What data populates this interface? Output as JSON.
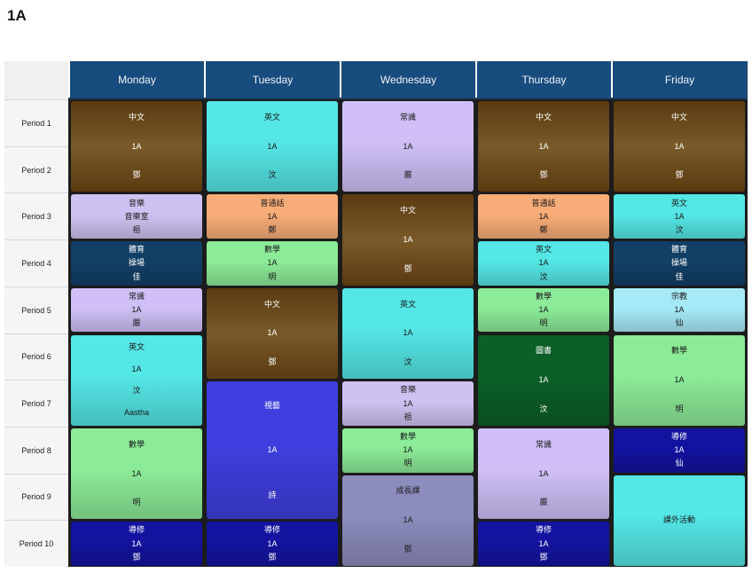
{
  "title": "1A",
  "days": [
    "Monday",
    "Tuesday",
    "Wednesday",
    "Thursday",
    "Friday"
  ],
  "periods": [
    "Period 1",
    "Period 2",
    "Period 3",
    "Period 4",
    "Period 5",
    "Period 6",
    "Period 7",
    "Period 8",
    "Period 9",
    "Period 10"
  ],
  "colors": {
    "chinese": "#6b4a1c",
    "english": "#55e6e6",
    "gs": "#d0c0f7",
    "music": "#cfc2f2",
    "putonghua": "#f8ad78",
    "pe": "#123f66",
    "math": "#8ceb98",
    "library": "#0b5f27",
    "art": "#3f3fe0",
    "religion": "#a6eaf7",
    "life": "#8c8cbd",
    "tutor": "#13139f"
  },
  "lessons": [
    {
      "day": 0,
      "start": 0,
      "span": 2,
      "c": "chinese",
      "lines": [
        "中文",
        "1A",
        "鄧"
      ]
    },
    {
      "day": 0,
      "start": 2,
      "span": 1,
      "c": "music",
      "lines": [
        "音樂",
        "音樂室",
        "祖"
      ]
    },
    {
      "day": 0,
      "start": 3,
      "span": 1,
      "c": "pe",
      "lines": [
        "體育",
        "操場",
        "佳"
      ]
    },
    {
      "day": 0,
      "start": 4,
      "span": 1,
      "c": "gs",
      "lines": [
        "常識",
        "1A",
        "嚴"
      ]
    },
    {
      "day": 0,
      "start": 5,
      "span": 2,
      "c": "english",
      "lines": [
        "英文",
        "1A",
        "汶",
        "Aastha"
      ]
    },
    {
      "day": 0,
      "start": 7,
      "span": 2,
      "c": "math",
      "lines": [
        "數學",
        "1A",
        "明"
      ]
    },
    {
      "day": 0,
      "start": 9,
      "span": 1,
      "c": "tutor",
      "lines": [
        "導修",
        "1A",
        "鄧"
      ]
    },
    {
      "day": 1,
      "start": 0,
      "span": 2,
      "c": "english",
      "lines": [
        "英文",
        "1A",
        "汶"
      ]
    },
    {
      "day": 1,
      "start": 2,
      "span": 1,
      "c": "putonghua",
      "lines": [
        "普通話",
        "1A",
        "鄭"
      ]
    },
    {
      "day": 1,
      "start": 3,
      "span": 1,
      "c": "math",
      "lines": [
        "數學",
        "1A",
        "明"
      ]
    },
    {
      "day": 1,
      "start": 4,
      "span": 2,
      "c": "chinese",
      "lines": [
        "中文",
        "1A",
        "鄧"
      ]
    },
    {
      "day": 1,
      "start": 6,
      "span": 3,
      "c": "art",
      "lines": [
        "視藝",
        "1A",
        "詩"
      ]
    },
    {
      "day": 1,
      "start": 9,
      "span": 1,
      "c": "tutor",
      "lines": [
        "導修",
        "1A",
        "鄧"
      ]
    },
    {
      "day": 2,
      "start": 0,
      "span": 2,
      "c": "gs",
      "lines": [
        "常識",
        "1A",
        "嚴"
      ]
    },
    {
      "day": 2,
      "start": 2,
      "span": 2,
      "c": "chinese",
      "lines": [
        "中文",
        "1A",
        "鄧"
      ]
    },
    {
      "day": 2,
      "start": 4,
      "span": 2,
      "c": "english",
      "lines": [
        "英文",
        "1A",
        "汶"
      ]
    },
    {
      "day": 2,
      "start": 6,
      "span": 1,
      "c": "music",
      "lines": [
        "音樂",
        "1A",
        "祖"
      ]
    },
    {
      "day": 2,
      "start": 7,
      "span": 1,
      "c": "math",
      "lines": [
        "數學",
        "1A",
        "明"
      ]
    },
    {
      "day": 2,
      "start": 8,
      "span": 2,
      "c": "life",
      "lines": [
        "成長課",
        "1A",
        "鄧"
      ]
    },
    {
      "day": 3,
      "start": 0,
      "span": 2,
      "c": "chinese",
      "lines": [
        "中文",
        "1A",
        "鄧"
      ]
    },
    {
      "day": 3,
      "start": 2,
      "span": 1,
      "c": "putonghua",
      "lines": [
        "普通話",
        "1A",
        "鄭"
      ]
    },
    {
      "day": 3,
      "start": 3,
      "span": 1,
      "c": "english",
      "lines": [
        "英文",
        "1A",
        "汶"
      ]
    },
    {
      "day": 3,
      "start": 4,
      "span": 1,
      "c": "math",
      "lines": [
        "數學",
        "1A",
        "明"
      ]
    },
    {
      "day": 3,
      "start": 5,
      "span": 2,
      "c": "library",
      "lines": [
        "圖書",
        "1A",
        "汶"
      ]
    },
    {
      "day": 3,
      "start": 7,
      "span": 2,
      "c": "gs",
      "lines": [
        "常識",
        "1A",
        "嚴"
      ]
    },
    {
      "day": 3,
      "start": 9,
      "span": 1,
      "c": "tutor",
      "lines": [
        "導修",
        "1A",
        "鄧"
      ]
    },
    {
      "day": 4,
      "start": 0,
      "span": 2,
      "c": "chinese",
      "lines": [
        "中文",
        "1A",
        "鄧"
      ]
    },
    {
      "day": 4,
      "start": 2,
      "span": 1,
      "c": "english",
      "lines": [
        "英文",
        "1A",
        "汶"
      ]
    },
    {
      "day": 4,
      "start": 3,
      "span": 1,
      "c": "pe",
      "lines": [
        "體育",
        "操場",
        "佳"
      ]
    },
    {
      "day": 4,
      "start": 4,
      "span": 1,
      "c": "religion",
      "lines": [
        "宗教",
        "1A",
        "仙"
      ]
    },
    {
      "day": 4,
      "start": 5,
      "span": 2,
      "c": "math",
      "lines": [
        "數學",
        "1A",
        "明"
      ]
    },
    {
      "day": 4,
      "start": 7,
      "span": 1,
      "c": "tutor",
      "lines": [
        "導修",
        "1A",
        "仙"
      ]
    },
    {
      "day": 4,
      "start": 8,
      "span": 2,
      "c": "english",
      "lines": [
        "課外活動"
      ]
    }
  ]
}
